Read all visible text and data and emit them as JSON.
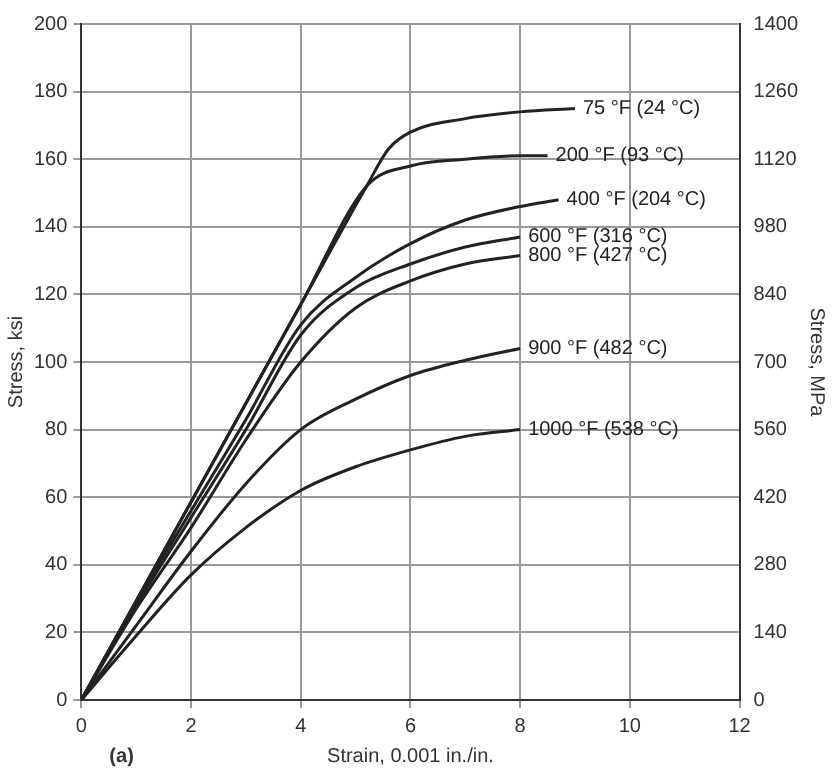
{
  "chart_data": {
    "type": "line",
    "xlabel": "Strain, 0.001 in./in.",
    "ylabel": "Stress, ksi",
    "y2label": "Stress, MPa",
    "xlim": [
      0,
      12
    ],
    "xticks": [
      0,
      2,
      4,
      6,
      8,
      10,
      12
    ],
    "ylim": [
      0,
      200
    ],
    "yticks": [
      0,
      20,
      40,
      60,
      80,
      100,
      120,
      140,
      160,
      180,
      200
    ],
    "y2lim": [
      0,
      1400
    ],
    "y2ticks": [
      0,
      140,
      280,
      420,
      560,
      700,
      840,
      980,
      1120,
      1260,
      1400
    ],
    "grid": true,
    "legend": false,
    "marker": "none",
    "line_style": "solid",
    "annotations": [
      "(a)"
    ],
    "series": [
      {
        "name": "75 °F (24 °C)",
        "color": "#222222",
        "x": [
          0,
          2,
          4,
          5.2,
          5.6,
          6,
          7,
          8,
          9
        ],
        "values": [
          0,
          58.6,
          117,
          152,
          163,
          168,
          172,
          174,
          175
        ]
      },
      {
        "name": "200 °F (93 °C)",
        "color": "#222222",
        "x": [
          0,
          2,
          4,
          5.2,
          6,
          7,
          8,
          8.5
        ],
        "values": [
          0,
          58.6,
          117,
          152,
          158,
          160,
          161,
          161
        ]
      },
      {
        "name": "400 °F (204 °C)",
        "color": "#222222",
        "x": [
          0,
          1,
          2,
          3,
          4,
          5,
          6,
          7,
          8,
          8.7
        ],
        "values": [
          0,
          29,
          56,
          83,
          111,
          125,
          135,
          142,
          146,
          148
        ]
      },
      {
        "name": "600 °F (316 °C)",
        "color": "#222222",
        "x": [
          0,
          1,
          2,
          3,
          4,
          5,
          6,
          7,
          8
        ],
        "values": [
          0,
          28,
          54,
          80,
          108,
          122,
          129,
          134,
          137
        ]
      },
      {
        "name": "800 °F (427 °C)",
        "color": "#222222",
        "x": [
          0,
          1,
          2,
          3,
          4,
          5,
          6,
          7,
          8
        ],
        "values": [
          0,
          27,
          51,
          77,
          100,
          116,
          124,
          129,
          131.5
        ]
      },
      {
        "name": "900 °F (482 °C)",
        "color": "#222222",
        "x": [
          0,
          1,
          2,
          3,
          4,
          5,
          6,
          7,
          8
        ],
        "values": [
          0,
          22,
          44,
          64,
          80,
          89,
          96,
          100.5,
          104
        ]
      },
      {
        "name": "1000 °F (538 °C)",
        "color": "#222222",
        "x": [
          0,
          1,
          2,
          3,
          4,
          5,
          6,
          7,
          8
        ],
        "values": [
          0,
          19,
          37,
          51,
          62,
          69,
          74,
          78,
          80
        ]
      }
    ]
  }
}
